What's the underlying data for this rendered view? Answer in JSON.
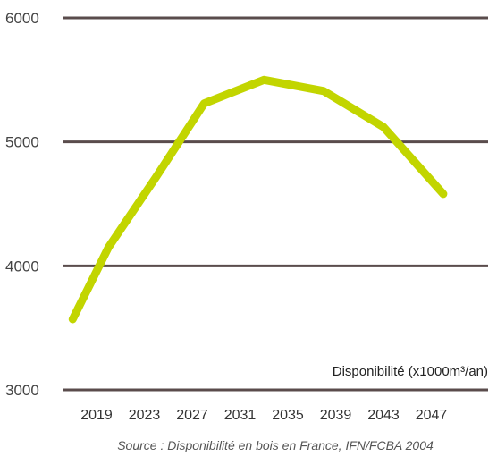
{
  "chart_data": {
    "type": "line",
    "categories": [
      "2019",
      "2023",
      "2027",
      "2031",
      "2035",
      "2039",
      "2043",
      "2047"
    ],
    "series": [
      {
        "x": [
          2017,
          2020,
          2024,
          2028,
          2033,
          2038,
          2043,
          2048
        ],
        "values": [
          3570,
          4150,
          4720,
          5310,
          5500,
          5410,
          5120,
          4580
        ]
      }
    ],
    "ylim": [
      3000,
      6000
    ],
    "yticks": [
      3000,
      4000,
      5000,
      6000
    ],
    "ylabel": "Disponibilité (x1000m³/an)",
    "source": "Source : Disponibilité en bois en France, IFN/FCBA 2004",
    "grid": "horizontal",
    "colors": {
      "line": "#c2d500",
      "grid": "#5a4c4c"
    }
  }
}
